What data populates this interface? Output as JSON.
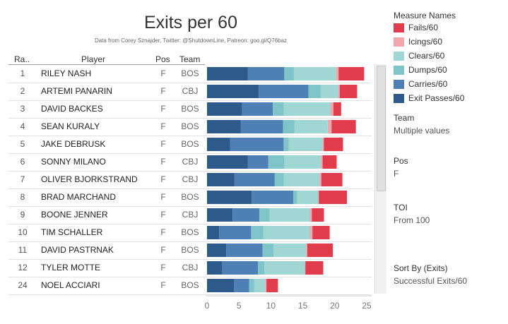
{
  "header": {
    "title": "Exits per 60",
    "subtitle": "Data from Corey Sznajder, Twitter: @ShutdownLine, Patreon: goo.gl/Q76baz"
  },
  "columns": {
    "rank": "Ra..",
    "player": "Player",
    "pos": "Pos",
    "team": "Team"
  },
  "chart_data": {
    "type": "bar",
    "orientation": "horizontal",
    "stacked": true,
    "title": "Exits per 60",
    "categories": [
      "RILEY NASH",
      "ARTEMI PANARIN",
      "DAVID BACKES",
      "SEAN KURALY",
      "JAKE DEBRUSK",
      "SONNY MILANO",
      "OLIVER BJORKSTRAND",
      "BRAD MARCHAND",
      "BOONE JENNER",
      "TIM SCHALLER",
      "DAVID PASTRNAK",
      "TYLER MOTTE",
      "NOEL ACCIARI"
    ],
    "ranks": [
      "1",
      "2",
      "3",
      "4",
      "5",
      "6",
      "7",
      "8",
      "9",
      "10",
      "11",
      "12",
      "24"
    ],
    "pos": [
      "F",
      "F",
      "F",
      "F",
      "F",
      "F",
      "F",
      "F",
      "F",
      "F",
      "F",
      "F",
      "F"
    ],
    "team": [
      "BOS",
      "CBJ",
      "BOS",
      "BOS",
      "BOS",
      "CBJ",
      "CBJ",
      "BOS",
      "CBJ",
      "BOS",
      "BOS",
      "CBJ",
      "BOS"
    ],
    "series": [
      {
        "name": "Exit Passes/60",
        "color": "#2d5a8a",
        "values": [
          6.4,
          8.1,
          5.5,
          5.3,
          3.6,
          6.4,
          4.3,
          7.0,
          4.0,
          1.9,
          3.0,
          2.4,
          4.2
        ]
      },
      {
        "name": "Carries/60",
        "color": "#4e7fb5",
        "values": [
          5.7,
          7.8,
          4.8,
          6.6,
          8.4,
          3.2,
          6.3,
          6.5,
          4.2,
          5.0,
          5.7,
          5.6,
          2.4
        ]
      },
      {
        "name": "Dumps/60",
        "color": "#7fc4c8",
        "values": [
          1.5,
          1.9,
          1.7,
          1.8,
          0.8,
          2.5,
          1.4,
          0.6,
          1.6,
          1.9,
          1.7,
          1.0,
          0.8
        ]
      },
      {
        "name": "Clears/60",
        "color": "#a0d6d4",
        "values": [
          6.6,
          2.7,
          7.3,
          5.2,
          5.3,
          5.7,
          5.6,
          3.3,
          6.3,
          7.3,
          5.1,
          6.3,
          1.7
        ]
      },
      {
        "name": "Icings/60",
        "color": "#f4a6ad",
        "values": [
          0.4,
          0.3,
          0.5,
          0.6,
          0.2,
          0.3,
          0.3,
          0.1,
          0.3,
          0.4,
          0.2,
          0.1,
          0.2
        ]
      },
      {
        "name": "Fails/60",
        "color": "#e03c4b",
        "values": [
          4.0,
          2.7,
          1.2,
          3.8,
          3.0,
          2.2,
          3.3,
          4.4,
          1.9,
          2.7,
          4.0,
          2.8,
          1.8
        ]
      }
    ],
    "xlabel": "",
    "xlim": [
      0,
      25
    ],
    "xticks": [
      0,
      5,
      10,
      15,
      20,
      25
    ]
  },
  "legend": {
    "title": "Measure Names",
    "items": [
      {
        "label": "Fails/60",
        "color": "#e03c4b"
      },
      {
        "label": "Icings/60",
        "color": "#f4a6ad"
      },
      {
        "label": "Clears/60",
        "color": "#a0d6d4"
      },
      {
        "label": "Dumps/60",
        "color": "#7fc4c8"
      },
      {
        "label": "Carries/60",
        "color": "#4e7fb5"
      },
      {
        "label": "Exit Passes/60",
        "color": "#2d5a8a"
      }
    ]
  },
  "filters": {
    "team": {
      "title": "Team",
      "value": "Multiple values"
    },
    "pos": {
      "title": "Pos",
      "value": "F"
    },
    "toi": {
      "title": "TOI",
      "value": "From 100"
    },
    "sort": {
      "title": "Sort By (Exits)",
      "value": "Successful Exits/60"
    }
  }
}
